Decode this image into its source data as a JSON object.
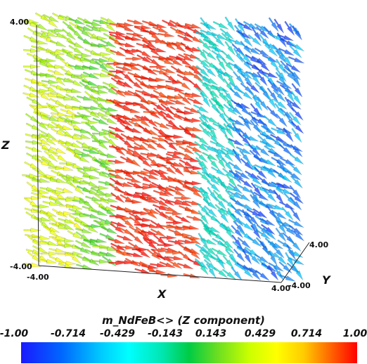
{
  "scene": {
    "axes": {
      "x": {
        "title": "X",
        "min_label": "-4.00",
        "max_label": "4.00"
      },
      "y": {
        "title": "Y",
        "min_label": "-4.00",
        "max_label": "4.00"
      },
      "z": {
        "title": "Z",
        "min_label": "-4.00",
        "max_label": "4.00"
      }
    }
  },
  "colorbar": {
    "title": "m_NdFeB<> (Z component)",
    "ticks": [
      "-1.00",
      "-0.714",
      "-0.429",
      "-0.143",
      "0.143",
      "0.429",
      "0.714",
      "1.00"
    ],
    "range": [
      -1.0,
      1.0
    ]
  }
}
